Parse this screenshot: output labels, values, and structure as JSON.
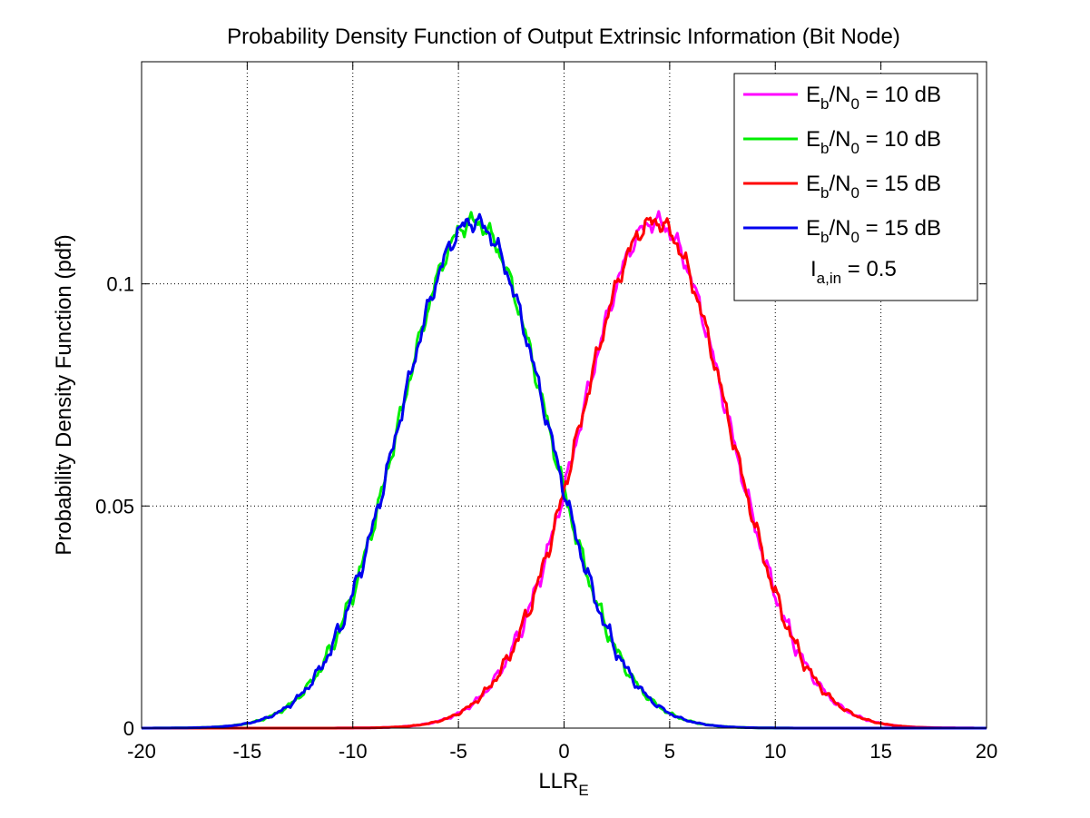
{
  "chart_data": {
    "type": "line",
    "title": "Probability Density Function of Output Extrinsic Information (Bit Node)",
    "xlabel": "LLR",
    "xlabel_sub": "E",
    "ylabel": "Probability Density Function (pdf)",
    "xlim": [
      -20,
      20
    ],
    "ylim": [
      0,
      0.15
    ],
    "xticks": [
      -20,
      -15,
      -10,
      -5,
      0,
      5,
      10,
      15,
      20
    ],
    "xtick_labels": [
      "-20",
      "-15",
      "-10",
      "-5",
      "0",
      "5",
      "10",
      "15",
      "20"
    ],
    "yticks": [
      0,
      0.05,
      0.1
    ],
    "ytick_labels": [
      "0",
      "0.05",
      "0.1"
    ],
    "grid": true,
    "legend_position": "top-right",
    "legend_note": {
      "main": "I",
      "sub": "a,in",
      "suffix": " = 0.5"
    },
    "series": [
      {
        "name": "Eb/N0 = 10 dB",
        "label_main": "E",
        "label_sub1": "b",
        "label_mid": "/N",
        "label_sub2": "0",
        "label_suffix": " = 10 dB",
        "color": "#ff00ff",
        "mean": 4.3,
        "std": 3.5,
        "peak": 0.114
      },
      {
        "name": "Eb/N0 = 10 dB",
        "label_main": "E",
        "label_sub1": "b",
        "label_mid": "/N",
        "label_sub2": "0",
        "label_suffix": " = 10 dB",
        "color": "#00ee00",
        "mean": -4.3,
        "std": 3.5,
        "peak": 0.114
      },
      {
        "name": "Eb/N0 = 15 dB",
        "label_main": "E",
        "label_sub1": "b",
        "label_mid": "/N",
        "label_sub2": "0",
        "label_suffix": " = 15 dB",
        "color": "#ff0000",
        "mean": 4.3,
        "std": 3.5,
        "peak": 0.114
      },
      {
        "name": "Eb/N0 = 15 dB",
        "label_main": "E",
        "label_sub1": "b",
        "label_mid": "/N",
        "label_sub2": "0",
        "label_suffix": " = 15 dB",
        "color": "#0000ee",
        "mean": -4.3,
        "std": 3.5,
        "peak": 0.114
      }
    ]
  }
}
